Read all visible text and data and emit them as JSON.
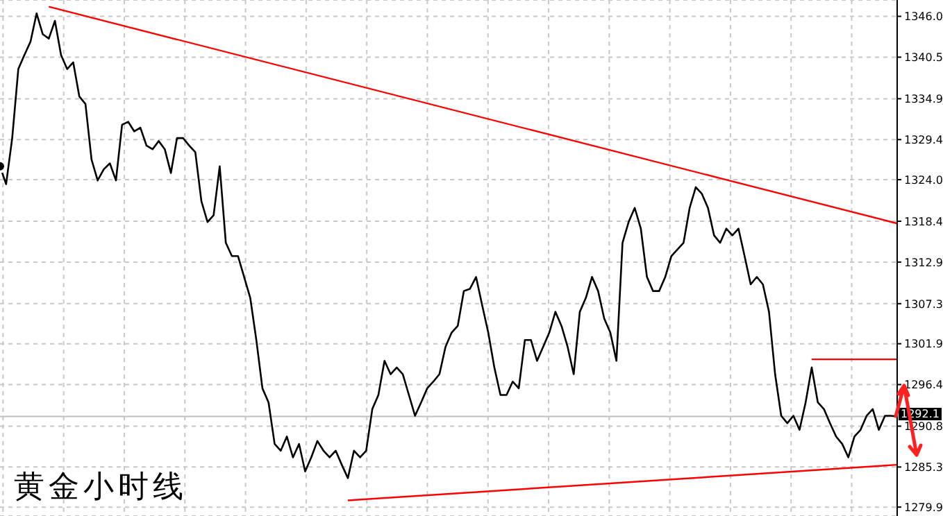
{
  "chart_data": {
    "type": "line",
    "title": "黄金小时线",
    "categories": [
      null,
      null,
      null,
      null,
      null,
      null,
      null,
      null,
      null,
      null,
      null,
      null,
      null,
      null,
      null,
      null,
      null,
      null,
      null,
      null,
      null,
      null,
      null,
      null,
      null,
      null,
      null,
      null,
      null,
      null,
      null,
      null,
      null,
      null,
      null,
      null,
      null,
      null,
      null,
      null,
      null,
      null,
      null,
      null,
      null,
      null,
      null,
      null,
      null,
      null,
      null,
      null,
      null,
      null,
      null,
      null,
      null,
      null,
      null,
      null,
      null,
      null,
      null,
      null,
      null,
      null,
      null,
      null,
      null,
      null,
      null,
      null,
      null,
      null,
      null,
      null,
      null,
      null,
      null,
      null,
      null,
      null,
      null,
      null,
      null,
      null,
      null,
      null,
      null,
      null,
      null,
      null,
      null,
      null,
      null,
      null,
      null,
      null,
      null,
      null,
      null,
      null,
      null,
      null,
      null,
      null,
      null,
      null,
      null,
      null,
      null,
      null,
      null,
      null,
      null,
      null,
      null,
      null,
      null,
      null,
      null,
      null,
      null,
      null,
      null,
      null,
      null,
      null,
      null,
      null,
      null,
      null,
      null,
      null,
      null,
      null,
      null,
      null,
      null,
      null,
      null,
      null,
      null,
      null,
      null,
      null,
      null,
      null
    ],
    "series": [
      {
        "color": "#000000",
        "values": [
          1325.8,
          1323.4,
          1329.6,
          1338.9,
          1340.8,
          1342.6,
          1346.4,
          1343.6,
          1343.0,
          1345.4,
          1340.8,
          1338.9,
          1339.8,
          1335.2,
          1334.2,
          1326.7,
          1323.9,
          1325.4,
          1326.2,
          1323.9,
          1331.4,
          1331.8,
          1330.5,
          1331.0,
          1328.6,
          1328.1,
          1329.2,
          1328.1,
          1324.9,
          1329.6,
          1329.6,
          1328.6,
          1327.7,
          1321.1,
          1318.3,
          1319.2,
          1325.8,
          1315.5,
          1313.7,
          1313.7,
          1310.9,
          1308.1,
          1302.4,
          1295.9,
          1294.0,
          1288.4,
          1287.5,
          1289.4,
          1286.6,
          1288.4,
          1284.7,
          1286.6,
          1288.8,
          1287.5,
          1286.6,
          1287.5,
          1285.6,
          1283.8,
          1287.5,
          1286.6,
          1287.5,
          1293.1,
          1295.0,
          1299.6,
          1297.8,
          1298.7,
          1297.8,
          1295.0,
          1292.2,
          1294.0,
          1295.9,
          1296.8,
          1297.8,
          1301.5,
          1303.4,
          1304.3,
          1309.0,
          1309.3,
          1310.9,
          1307.1,
          1303.4,
          1298.7,
          1295.0,
          1295.0,
          1296.8,
          1295.9,
          1302.4,
          1302.4,
          1299.6,
          1301.5,
          1303.4,
          1306.2,
          1304.3,
          1301.5,
          1297.8,
          1306.2,
          1308.1,
          1310.9,
          1309.0,
          1305.3,
          1303.4,
          1299.6,
          1315.5,
          1318.3,
          1320.2,
          1317.4,
          1310.9,
          1309.0,
          1309.0,
          1310.9,
          1313.7,
          1314.6,
          1315.5,
          1320.2,
          1323.0,
          1322.1,
          1320.2,
          1316.5,
          1315.5,
          1317.4,
          1316.5,
          1317.4,
          1313.7,
          1309.9,
          1310.9,
          1309.9,
          1306.2,
          1297.8,
          1292.2,
          1291.2,
          1292.2,
          1290.3,
          1294.0,
          1298.7,
          1294.0,
          1293.1,
          1291.2,
          1289.4,
          1288.4,
          1286.6,
          1289.4,
          1290.3,
          1292.2,
          1293.1,
          1290.3,
          1292.2,
          1292.2,
          1292.1
        ]
      },
      {
        "type": "line",
        "color": "#ff0000",
        "values": [
          null,
          null,
          null,
          null,
          null,
          null,
          null,
          null,
          1347.3,
          null,
          null,
          null,
          null,
          null,
          null,
          null,
          null,
          null,
          null,
          null,
          null,
          null,
          null,
          null,
          null,
          null,
          null,
          null,
          null,
          null,
          null,
          null,
          null,
          null,
          null,
          null,
          null,
          null,
          null,
          null,
          null,
          null,
          null,
          null,
          null,
          null,
          null,
          null,
          null,
          null,
          null,
          null,
          null,
          null,
          null,
          null,
          null,
          null,
          null,
          null,
          null,
          null,
          null,
          null,
          null,
          null,
          null,
          null,
          null,
          null,
          null,
          null,
          null,
          null,
          null,
          null,
          null,
          null,
          null,
          null,
          null,
          null,
          null,
          null,
          null,
          null,
          null,
          null,
          null,
          null,
          null,
          null,
          null,
          null,
          null,
          null,
          null,
          null,
          null,
          null,
          null,
          null,
          null,
          null,
          null,
          null,
          null,
          null,
          null,
          null,
          null,
          null,
          null,
          null,
          null,
          null,
          null,
          null,
          null,
          null,
          null,
          null,
          null,
          null,
          null,
          null,
          null,
          null,
          null,
          null,
          null,
          null,
          null,
          null,
          null,
          null,
          null,
          null,
          null,
          null,
          null,
          null,
          null,
          null,
          null,
          null,
          null,
          1318.1
        ]
      },
      {
        "type": "line",
        "color": "#ff0000",
        "values": [
          null,
          null,
          null,
          null,
          null,
          null,
          null,
          null,
          null,
          null,
          null,
          null,
          null,
          null,
          null,
          null,
          null,
          null,
          null,
          null,
          null,
          null,
          null,
          null,
          null,
          null,
          null,
          null,
          null,
          null,
          null,
          null,
          null,
          null,
          null,
          null,
          null,
          null,
          null,
          null,
          null,
          null,
          null,
          null,
          null,
          null,
          null,
          null,
          null,
          null,
          null,
          null,
          null,
          null,
          null,
          null,
          null,
          1280.8,
          null,
          null,
          null,
          null,
          null,
          null,
          null,
          null,
          null,
          null,
          null,
          null,
          null,
          null,
          null,
          null,
          null,
          null,
          null,
          null,
          null,
          null,
          null,
          null,
          null,
          null,
          null,
          null,
          null,
          null,
          null,
          null,
          null,
          null,
          null,
          null,
          null,
          null,
          null,
          null,
          null,
          null,
          null,
          null,
          null,
          null,
          null,
          null,
          null,
          null,
          null,
          null,
          null,
          null,
          null,
          null,
          null,
          null,
          null,
          null,
          null,
          null,
          null,
          null,
          null,
          null,
          null,
          null,
          null,
          null,
          null,
          null,
          null,
          null,
          null,
          null,
          null,
          null,
          null,
          null,
          null,
          null,
          null,
          null,
          null,
          null,
          null,
          null,
          null,
          1285.6
        ]
      },
      {
        "type": "line",
        "color": "#ff0000",
        "values": [
          null,
          null,
          null,
          null,
          null,
          null,
          null,
          null,
          null,
          null,
          null,
          null,
          null,
          null,
          null,
          null,
          null,
          null,
          null,
          null,
          null,
          null,
          null,
          null,
          null,
          null,
          null,
          null,
          null,
          null,
          null,
          null,
          null,
          null,
          null,
          null,
          null,
          null,
          null,
          null,
          null,
          null,
          null,
          null,
          null,
          null,
          null,
          null,
          null,
          null,
          null,
          null,
          null,
          null,
          null,
          null,
          null,
          null,
          null,
          null,
          null,
          null,
          null,
          null,
          null,
          null,
          null,
          null,
          null,
          null,
          null,
          null,
          null,
          null,
          null,
          null,
          null,
          null,
          null,
          null,
          null,
          null,
          null,
          null,
          null,
          null,
          null,
          null,
          null,
          null,
          null,
          null,
          null,
          null,
          null,
          null,
          null,
          null,
          null,
          null,
          null,
          null,
          null,
          null,
          null,
          null,
          null,
          null,
          null,
          null,
          null,
          null,
          null,
          null,
          null,
          null,
          null,
          null,
          null,
          null,
          null,
          null,
          null,
          null,
          null,
          null,
          null,
          null,
          null,
          null,
          null,
          null,
          null,
          1299.8,
          null,
          null,
          null,
          null,
          null,
          null,
          null,
          null,
          null,
          null,
          null,
          null,
          null,
          1299.8
        ]
      }
    ],
    "ylim": [
      1278.7,
      1348.2
    ],
    "yticks": [
      1279.9,
      1285.3,
      1290.8,
      1296.4,
      1301.9,
      1307.3,
      1312.9,
      1318.4,
      {
        "value": 1324,
        "label": "1324.0"
      },
      1329.4,
      1334.9,
      1340.5,
      {
        "value": 1346,
        "label": "1346.0"
      }
    ],
    "ref_lines": [
      {
        "axis": "y",
        "value": 1292.1,
        "label": "1292.1",
        "color": "#c0c0c0"
      }
    ],
    "grid": true,
    "tick_labels": "y",
    "marker": "none",
    "line_style": "solid"
  }
}
